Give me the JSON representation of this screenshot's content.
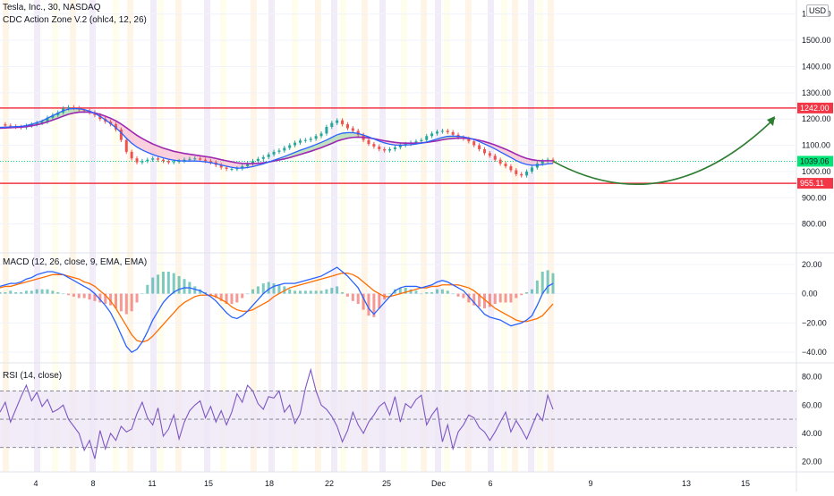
{
  "header": {
    "title": "Tesla, Inc., 30, NASDAQ",
    "indicator": "CDC Action Zone V.2 (ohlc4, 12, 26)",
    "currency": "USD"
  },
  "macd_label": "MACD (12, 26, close, 9, EMA, EMA)",
  "rsi_label": "RSI (14, close)",
  "colors": {
    "resistance": "#f23645",
    "arrow": "#2e7d32",
    "fast_line": "#2962ff",
    "slow_line": "#9c27b0",
    "bull_fill": "#a5d6a7",
    "bear_fill": "#f8bbd0",
    "macd_line": "#2962ff",
    "signal_line": "#ff6d00",
    "hist_pos": "#26a69a",
    "hist_neg": "#ef5350",
    "rsi_line": "#7e57c2",
    "rsi_band": "#ede7f6",
    "current_price": "#00e676"
  },
  "chart_data": [
    {
      "type": "line",
      "panel": "price",
      "x_tick_labels": [
        "4",
        "8",
        "11",
        "15",
        "18",
        "22",
        "25",
        "Dec",
        "6",
        "9",
        "13",
        "15"
      ],
      "y_tick_labels": [
        "1600.00",
        "1500.00",
        "1400.00",
        "1300.00",
        "1200.00",
        "1100.00",
        "1000.00",
        "900.00",
        "800.00"
      ],
      "ylim": [
        700,
        1640
      ],
      "price": [
        1180,
        1175,
        1172,
        1170,
        1168,
        1175,
        1180,
        1185,
        1190,
        1205,
        1215,
        1225,
        1240,
        1245,
        1242,
        1236,
        1232,
        1225,
        1215,
        1200,
        1190,
        1180,
        1160,
        1120,
        1075,
        1050,
        1035,
        1040,
        1045,
        1050,
        1045,
        1040,
        1035,
        1038,
        1040,
        1045,
        1048,
        1050,
        1045,
        1040,
        1035,
        1025,
        1015,
        1010,
        1010,
        1012,
        1020,
        1030,
        1040,
        1048,
        1055,
        1065,
        1075,
        1080,
        1090,
        1100,
        1110,
        1118,
        1120,
        1125,
        1135,
        1145,
        1170,
        1185,
        1195,
        1180,
        1165,
        1155,
        1140,
        1120,
        1105,
        1095,
        1085,
        1080,
        1085,
        1092,
        1100,
        1105,
        1110,
        1115,
        1120,
        1135,
        1145,
        1152,
        1155,
        1150,
        1140,
        1130,
        1125,
        1115,
        1100,
        1085,
        1070,
        1060,
        1045,
        1030,
        1020,
        1005,
        990,
        985,
        1000,
        1015,
        1030,
        1040,
        1045,
        1039
      ],
      "fast_ema": [
        1168,
        1169,
        1170,
        1171,
        1172,
        1175,
        1180,
        1186,
        1193,
        1203,
        1213,
        1222,
        1232,
        1238,
        1240,
        1239,
        1236,
        1230,
        1222,
        1210,
        1197,
        1183,
        1167,
        1148,
        1127,
        1108,
        1093,
        1082,
        1073,
        1065,
        1058,
        1052,
        1047,
        1043,
        1041,
        1040,
        1040,
        1040,
        1039,
        1037,
        1034,
        1030,
        1025,
        1020,
        1016,
        1013,
        1013,
        1015,
        1019,
        1024,
        1029,
        1036,
        1043,
        1050,
        1057,
        1065,
        1073,
        1081,
        1088,
        1095,
        1103,
        1111,
        1120,
        1130,
        1140,
        1146,
        1148,
        1148,
        1145,
        1139,
        1132,
        1124,
        1116,
        1109,
        1104,
        1101,
        1100,
        1101,
        1102,
        1105,
        1108,
        1112,
        1118,
        1124,
        1130,
        1134,
        1135,
        1134,
        1132,
        1128,
        1122,
        1114,
        1105,
        1096,
        1086,
        1075,
        1064,
        1053,
        1042,
        1033,
        1027,
        1024,
        1024,
        1026,
        1029,
        1031
      ],
      "slow_ema": [
        1165,
        1166,
        1167,
        1168,
        1169,
        1171,
        1174,
        1178,
        1183,
        1189,
        1196,
        1203,
        1211,
        1218,
        1223,
        1226,
        1227,
        1226,
        1223,
        1218,
        1211,
        1203,
        1193,
        1181,
        1167,
        1152,
        1138,
        1126,
        1115,
        1105,
        1097,
        1089,
        1083,
        1077,
        1073,
        1069,
        1066,
        1063,
        1060,
        1057,
        1054,
        1050,
        1045,
        1041,
        1037,
        1033,
        1031,
        1030,
        1030,
        1031,
        1033,
        1036,
        1040,
        1044,
        1048,
        1053,
        1059,
        1065,
        1071,
        1077,
        1084,
        1091,
        1099,
        1107,
        1116,
        1122,
        1127,
        1130,
        1131,
        1130,
        1128,
        1125,
        1121,
        1117,
        1114,
        1111,
        1109,
        1108,
        1108,
        1108,
        1109,
        1111,
        1114,
        1117,
        1121,
        1124,
        1126,
        1127,
        1127,
        1126,
        1123,
        1119,
        1114,
        1108,
        1101,
        1093,
        1085,
        1076,
        1066,
        1057,
        1050,
        1045,
        1042,
        1041,
        1041,
        1041
      ],
      "resistance_level": 1242,
      "support_level": 955.11,
      "current_price": 1039.06,
      "price_badges": [
        "1242.00",
        "1039.06",
        "955.11"
      ]
    },
    {
      "type": "line",
      "panel": "macd",
      "y_tick_labels": [
        "20.00",
        "0.00",
        "−20.00",
        "−40.00"
      ],
      "ylim": [
        -46,
        26
      ],
      "macd": [
        5,
        6,
        7,
        7,
        8,
        10,
        11,
        13,
        14,
        15,
        15,
        14,
        13,
        11,
        9,
        7,
        5,
        3,
        0,
        -4,
        -8,
        -13,
        -20,
        -28,
        -36,
        -40,
        -38,
        -33,
        -26,
        -18,
        -12,
        -6,
        -2,
        1,
        3,
        4,
        4,
        3,
        2,
        0,
        -2,
        -5,
        -9,
        -13,
        -16,
        -17,
        -15,
        -12,
        -8,
        -4,
        0,
        3,
        5,
        6,
        7,
        7,
        7,
        8,
        9,
        10,
        11,
        12,
        14,
        16,
        18,
        15,
        12,
        8,
        4,
        -3,
        -10,
        -14,
        -10,
        -6,
        -2,
        2,
        4,
        5,
        5,
        5,
        4,
        5,
        6,
        8,
        9,
        8,
        6,
        4,
        2,
        -2,
        -6,
        -10,
        -14,
        -16,
        -17,
        -18,
        -20,
        -22,
        -21,
        -20,
        -18,
        -15,
        -8,
        0,
        5,
        7
      ],
      "signal": [
        4,
        5,
        5,
        6,
        7,
        8,
        9,
        10,
        11,
        12,
        13,
        13,
        13,
        12,
        11,
        10,
        8,
        7,
        5,
        2,
        -1,
        -5,
        -10,
        -16,
        -22,
        -28,
        -32,
        -33,
        -32,
        -29,
        -25,
        -21,
        -17,
        -13,
        -9,
        -6,
        -4,
        -2,
        -1,
        -1,
        -1,
        -2,
        -4,
        -6,
        -9,
        -11,
        -12,
        -12,
        -11,
        -9,
        -7,
        -5,
        -2,
        0,
        2,
        4,
        5,
        6,
        7,
        8,
        9,
        10,
        11,
        12,
        13,
        14,
        14,
        13,
        11,
        8,
        5,
        2,
        0,
        -2,
        -2,
        -1,
        0,
        1,
        2,
        3,
        4,
        4,
        5,
        5,
        6,
        6,
        6,
        6,
        5,
        4,
        2,
        -1,
        -4,
        -7,
        -10,
        -12,
        -14,
        -16,
        -18,
        -19,
        -19,
        -18,
        -17,
        -15,
        -11,
        -7
      ]
    },
    {
      "type": "line",
      "panel": "rsi",
      "y_tick_labels": [
        "80.00",
        "60.00",
        "40.00",
        "20.00"
      ],
      "ylim": [
        14,
        88
      ],
      "upper_band": 70,
      "mid_band": 50,
      "lower_band": 30,
      "rsi": [
        55,
        62,
        48,
        57,
        66,
        74,
        63,
        69,
        59,
        64,
        55,
        57,
        60,
        50,
        45,
        40,
        28,
        35,
        22,
        42,
        29,
        40,
        35,
        45,
        41,
        43,
        54,
        62,
        51,
        46,
        58,
        38,
        43,
        53,
        36,
        48,
        56,
        60,
        63,
        51,
        59,
        48,
        56,
        46,
        55,
        68,
        62,
        74,
        70,
        61,
        57,
        66,
        65,
        70,
        55,
        60,
        47,
        54,
        72,
        85,
        70,
        60,
        57,
        52,
        45,
        34,
        42,
        55,
        46,
        40,
        48,
        53,
        59,
        62,
        53,
        66,
        48,
        61,
        58,
        64,
        67,
        46,
        53,
        58,
        34,
        46,
        29,
        41,
        46,
        53,
        51,
        44,
        41,
        35,
        41,
        48,
        55,
        41,
        49,
        43,
        36,
        45,
        54,
        49,
        67,
        57
      ]
    }
  ],
  "time_axis": {
    "labels": [
      "4",
      "8",
      "11",
      "15",
      "18",
      "22",
      "25",
      "Dec",
      "6",
      "9",
      "13",
      "15"
    ]
  }
}
